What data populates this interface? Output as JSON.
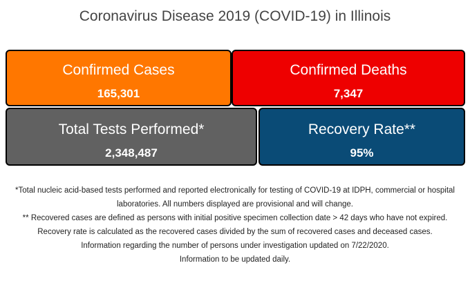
{
  "title": "Coronavirus Disease 2019 (COVID-19) in Illinois",
  "cards": {
    "confirmed_cases": {
      "label": "Confirmed Cases",
      "value": "165,301",
      "color": "#FF7700"
    },
    "confirmed_deaths": {
      "label": "Confirmed Deaths",
      "value": "7,347",
      "color": "#EE0000"
    },
    "total_tests": {
      "label": "Total Tests Performed*",
      "value": "2,348,487",
      "color": "#616161"
    },
    "recovery_rate": {
      "label": "Recovery Rate**",
      "value": "95%",
      "color": "#0A4B76"
    }
  },
  "notes": [
    "*Total nucleic acid-based tests performed and reported electronically for testing of COVID-19 at IDPH, commercial or hospital",
    "laboratories. All numbers displayed are provisional and will change.",
    "** Recovered cases are defined as persons with initial positive specimen collection date > 42 days who have not expired.",
    "Recovery rate is calculated as the recovered cases divided by the sum of recovered cases and deceased cases.",
    "Information regarding the number of persons under investigation updated on 7/22/2020.",
    "Information to be updated daily."
  ]
}
